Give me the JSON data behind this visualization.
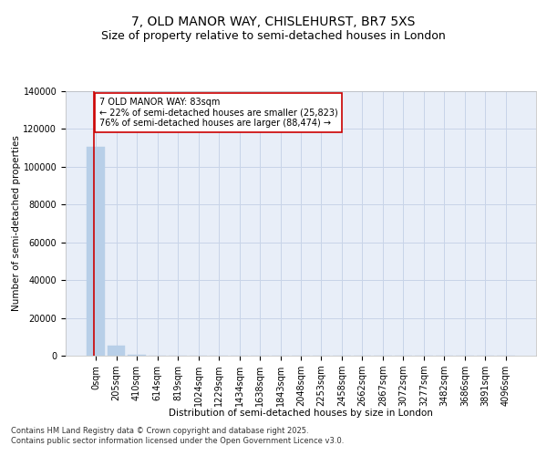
{
  "title": "7, OLD MANOR WAY, CHISLEHURST, BR7 5XS",
  "subtitle": "Size of property relative to semi-detached houses in London",
  "xlabel": "Distribution of semi-detached houses by size in London",
  "ylabel": "Number of semi-detached properties",
  "footnote1": "Contains HM Land Registry data © Crown copyright and database right 2025.",
  "footnote2": "Contains public sector information licensed under the Open Government Licence v3.0.",
  "annotation_line1": "7 OLD MANOR WAY: 83sqm",
  "annotation_line2": "← 22% of semi-detached houses are smaller (25,823)",
  "annotation_line3": "76% of semi-detached houses are larger (88,474) →",
  "property_size": 83,
  "bar_labels": [
    "0sqm",
    "205sqm",
    "410sqm",
    "614sqm",
    "819sqm",
    "1024sqm",
    "1229sqm",
    "1434sqm",
    "1638sqm",
    "1843sqm",
    "2048sqm",
    "2253sqm",
    "2458sqm",
    "2662sqm",
    "2867sqm",
    "3072sqm",
    "3277sqm",
    "3482sqm",
    "3686sqm",
    "3891sqm",
    "4096sqm"
  ],
  "bar_values": [
    110500,
    5200,
    300,
    80,
    30,
    10,
    5,
    3,
    2,
    1,
    1,
    1,
    1,
    0,
    0,
    0,
    0,
    0,
    0,
    0,
    0
  ],
  "bar_color": "#b8cfe8",
  "bar_edge_color": "#b8cfe8",
  "grid_color": "#c8d4e8",
  "background_color": "#e8eef8",
  "annotation_box_color": "#cc0000",
  "vline_color": "#cc0000",
  "ylim": [
    0,
    140000
  ],
  "yticks": [
    0,
    20000,
    40000,
    60000,
    80000,
    100000,
    120000,
    140000
  ],
  "title_fontsize": 10,
  "subtitle_fontsize": 9,
  "axis_label_fontsize": 7.5,
  "tick_fontsize": 7,
  "annotation_fontsize": 7,
  "footnote_fontsize": 6
}
